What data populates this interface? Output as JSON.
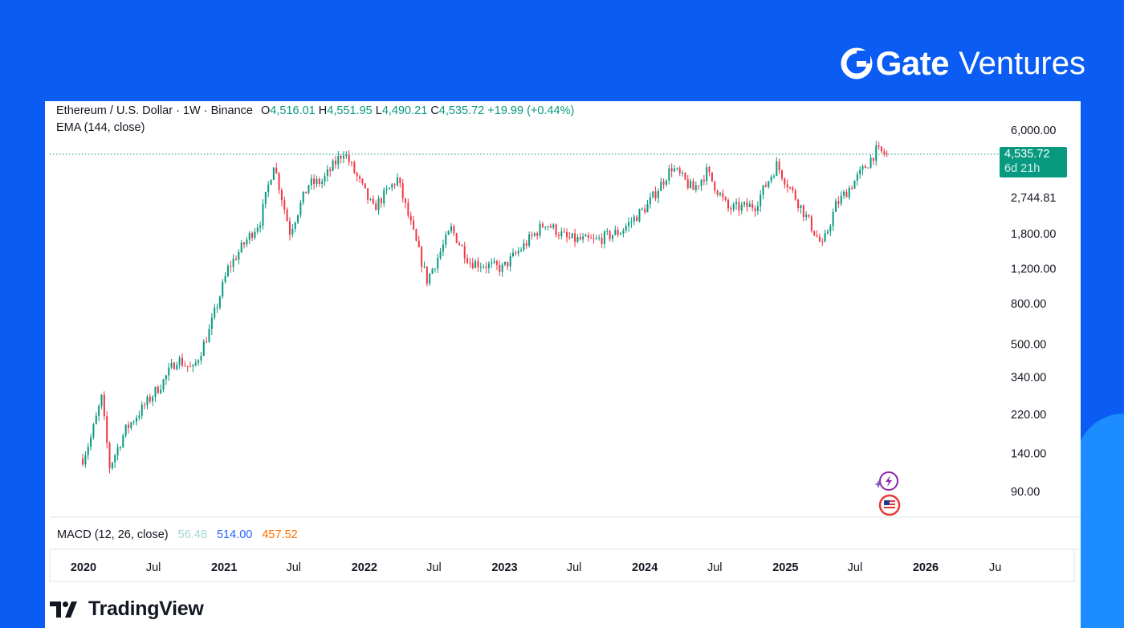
{
  "brand": {
    "name_bold": "Gate",
    "name_light": "Ventures",
    "icon": "gate-logo-icon"
  },
  "legend": {
    "symbol": "Ethereum / U.S. Dollar · 1W · Binance",
    "open_label": "O",
    "open": "4,516.01",
    "high_label": "H",
    "high": "4,551.95",
    "low_label": "L",
    "low": "4,490.21",
    "close_label": "C",
    "close": "4,535.72",
    "change": "+19.99 (+0.44%)"
  },
  "indicator_ema": "EMA (144, close)",
  "macd": {
    "label": "MACD (12, 26, close)",
    "v1": "56.48",
    "v2": "514.00",
    "v3": "457.52"
  },
  "price_tag": {
    "price": "4,535.72",
    "countdown": "6d 21h"
  },
  "footer": {
    "logo_text": "TradingView",
    "icon": "tradingview-logo-icon"
  },
  "colors": {
    "up": "#089981",
    "down": "#f23645",
    "background": "#0a5cf2",
    "accent": "#1c8cff"
  },
  "chart_data": {
    "type": "candlestick",
    "title": "Ethereum / U.S. Dollar · 1W · Binance",
    "scale": "log",
    "y_ticks": [
      6000,
      2744.81,
      1800,
      1200,
      800,
      500,
      340,
      220,
      140,
      90
    ],
    "y_tick_labels": [
      "6,000.00",
      "2,744.81",
      "1,800.00",
      "1,200.00",
      "800.00",
      "500.00",
      "340.00",
      "220.00",
      "140.00",
      "90.00"
    ],
    "x_ticks": [
      {
        "label": "2020",
        "date": "2020-01-01",
        "bold": true
      },
      {
        "label": "Jul",
        "date": "2020-07-01",
        "bold": false
      },
      {
        "label": "2021",
        "date": "2021-01-01",
        "bold": true
      },
      {
        "label": "Jul",
        "date": "2021-07-01",
        "bold": false
      },
      {
        "label": "2022",
        "date": "2022-01-01",
        "bold": true
      },
      {
        "label": "Jul",
        "date": "2022-07-01",
        "bold": false
      },
      {
        "label": "2023",
        "date": "2023-01-01",
        "bold": true
      },
      {
        "label": "Jul",
        "date": "2023-07-01",
        "bold": false
      },
      {
        "label": "2024",
        "date": "2024-01-01",
        "bold": true
      },
      {
        "label": "Jul",
        "date": "2024-07-01",
        "bold": false
      },
      {
        "label": "2025",
        "date": "2025-01-01",
        "bold": true
      },
      {
        "label": "Jul",
        "date": "2025-07-01",
        "bold": false
      },
      {
        "label": "2026",
        "date": "2026-01-01",
        "bold": true
      },
      {
        "label": "Ju",
        "date": "2026-07-01",
        "bold": false
      }
    ],
    "last_price": 4535.72,
    "price_path": [
      [
        "2019-12-30",
        132
      ],
      [
        "2020-01-20",
        168
      ],
      [
        "2020-02-17",
        265
      ],
      [
        "2020-03-09",
        120
      ],
      [
        "2020-04-20",
        185
      ],
      [
        "2020-06-01",
        235
      ],
      [
        "2020-07-27",
        325
      ],
      [
        "2020-08-31",
        420
      ],
      [
        "2020-10-12",
        370
      ],
      [
        "2020-11-23",
        580
      ],
      [
        "2021-01-11",
        1200
      ],
      [
        "2021-02-22",
        1600
      ],
      [
        "2021-04-05",
        2100
      ],
      [
        "2021-05-10",
        4100
      ],
      [
        "2021-06-21",
        1850
      ],
      [
        "2021-08-09",
        3200
      ],
      [
        "2021-09-13",
        3300
      ],
      [
        "2021-11-08",
        4700
      ],
      [
        "2022-01-24",
        2400
      ],
      [
        "2022-03-28",
        3400
      ],
      [
        "2022-06-13",
        1050
      ],
      [
        "2022-08-15",
        1900
      ],
      [
        "2022-10-03",
        1300
      ],
      [
        "2022-12-26",
        1200
      ],
      [
        "2023-04-17",
        2050
      ],
      [
        "2023-06-12",
        1700
      ],
      [
        "2023-08-21",
        1650
      ],
      [
        "2023-10-30",
        1850
      ],
      [
        "2024-01-08",
        2500
      ],
      [
        "2024-03-11",
        3900
      ],
      [
        "2024-05-06",
        3000
      ],
      [
        "2024-06-10",
        3700
      ],
      [
        "2024-08-05",
        2400
      ],
      [
        "2024-10-14",
        2500
      ],
      [
        "2024-12-09",
        4000
      ],
      [
        "2025-02-03",
        2600
      ],
      [
        "2025-04-07",
        1550
      ],
      [
        "2025-05-12",
        2500
      ],
      [
        "2025-07-14",
        3600
      ],
      [
        "2025-08-25",
        4700
      ],
      [
        "2025-09-22",
        4536
      ]
    ]
  }
}
